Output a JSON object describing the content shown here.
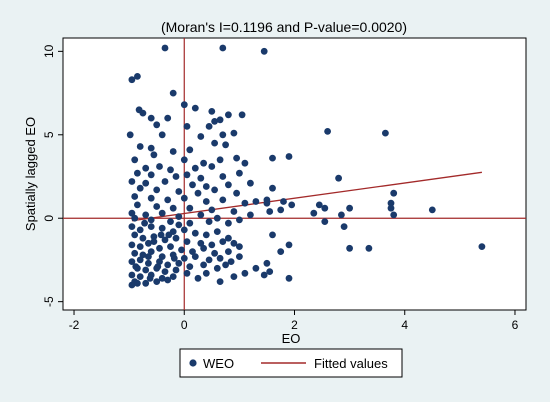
{
  "chart_data": {
    "type": "scatter",
    "title": "(Moran's I=0.1196 and P-value=0.0020)",
    "xlabel": "EO",
    "ylabel": "Spatially lagged EO",
    "xlim": [
      -2.2,
      6.2
    ],
    "ylim": [
      -5.5,
      10.8
    ],
    "xticks": [
      -2,
      0,
      2,
      4,
      6
    ],
    "yticks": [
      -5,
      0,
      5,
      10
    ],
    "grid": false,
    "legend_position": "bottom",
    "reference_lines": {
      "x": 0,
      "y": 0
    },
    "series": [
      {
        "name": "WEO",
        "kind": "scatter",
        "color": "#1a3a6b",
        "points": [
          [
            -0.35,
            10.2
          ],
          [
            0.7,
            10.2
          ],
          [
            1.45,
            10.0
          ],
          [
            -0.95,
            8.3
          ],
          [
            -0.85,
            8.5
          ],
          [
            -0.2,
            7.5
          ],
          [
            0.0,
            6.8
          ],
          [
            0.2,
            6.6
          ],
          [
            -0.82,
            6.5
          ],
          [
            -0.75,
            6.3
          ],
          [
            0.5,
            6.4
          ],
          [
            0.8,
            6.2
          ],
          [
            1.05,
            6.2
          ],
          [
            -0.6,
            6.0
          ],
          [
            -0.3,
            6.0
          ],
          [
            0.55,
            5.8
          ],
          [
            0.65,
            5.9
          ],
          [
            0.05,
            5.5
          ],
          [
            -0.5,
            5.6
          ],
          [
            0.45,
            5.5
          ],
          [
            0.7,
            5.0
          ],
          [
            0.9,
            5.1
          ],
          [
            -0.98,
            5.0
          ],
          [
            -0.4,
            5.0
          ],
          [
            0.3,
            4.9
          ],
          [
            0.55,
            4.5
          ],
          [
            0.75,
            4.4
          ],
          [
            -0.8,
            4.3
          ],
          [
            -0.6,
            4.2
          ],
          [
            -0.2,
            4.0
          ],
          [
            0.1,
            4.1
          ],
          [
            -0.55,
            3.8
          ],
          [
            -0.9,
            3.5
          ],
          [
            0.0,
            3.5
          ],
          [
            0.35,
            3.3
          ],
          [
            0.65,
            3.5
          ],
          [
            0.95,
            3.6
          ],
          [
            1.1,
            3.3
          ],
          [
            -0.7,
            3.0
          ],
          [
            -0.45,
            3.1
          ],
          [
            -0.25,
            2.9
          ],
          [
            0.2,
            3.0
          ],
          [
            0.5,
            3.1
          ],
          [
            -0.85,
            2.7
          ],
          [
            -0.6,
            2.6
          ],
          [
            -0.15,
            2.5
          ],
          [
            0.05,
            2.6
          ],
          [
            0.3,
            2.4
          ],
          [
            0.7,
            2.5
          ],
          [
            1.0,
            2.7
          ],
          [
            -0.95,
            2.2
          ],
          [
            -0.7,
            2.1
          ],
          [
            -0.35,
            2.2
          ],
          [
            0.15,
            2.0
          ],
          [
            0.4,
            1.9
          ],
          [
            0.8,
            2.0
          ],
          [
            1.2,
            2.1
          ],
          [
            -0.8,
            1.8
          ],
          [
            -0.5,
            1.7
          ],
          [
            -0.1,
            1.6
          ],
          [
            0.25,
            1.5
          ],
          [
            0.55,
            1.7
          ],
          [
            0.95,
            1.5
          ],
          [
            -0.9,
            1.3
          ],
          [
            -0.6,
            1.2
          ],
          [
            -0.3,
            1.1
          ],
          [
            0.0,
            1.2
          ],
          [
            0.4,
            1.0
          ],
          [
            0.7,
            1.1
          ],
          [
            1.1,
            0.9
          ],
          [
            1.3,
            1.0
          ],
          [
            -0.85,
            0.8
          ],
          [
            -0.5,
            0.7
          ],
          [
            -0.2,
            0.6
          ],
          [
            0.1,
            0.6
          ],
          [
            0.5,
            0.5
          ],
          [
            0.9,
            0.4
          ],
          [
            1.5,
            0.9
          ],
          [
            -0.95,
            0.3
          ],
          [
            -0.7,
            0.2
          ],
          [
            -0.4,
            0.3
          ],
          [
            -0.1,
            0.1
          ],
          [
            0.3,
            0.2
          ],
          [
            0.6,
            0.0
          ],
          [
            1.2,
            0.2
          ],
          [
            -0.9,
            0.0
          ],
          [
            -0.6,
            -0.1
          ],
          [
            -0.25,
            -0.2
          ],
          [
            0.1,
            -0.3
          ],
          [
            0.45,
            -0.2
          ],
          [
            0.8,
            -0.3
          ],
          [
            1.0,
            -0.1
          ],
          [
            1.6,
            3.6
          ],
          [
            1.9,
            3.7
          ],
          [
            1.6,
            1.8
          ],
          [
            1.5,
            1.1
          ],
          [
            1.8,
            1.0
          ],
          [
            1.55,
            0.4
          ],
          [
            1.75,
            0.5
          ],
          [
            1.95,
            0.8
          ],
          [
            2.45,
            0.8
          ],
          [
            2.55,
            0.6
          ],
          [
            2.35,
            0.3
          ],
          [
            2.6,
            5.2
          ],
          [
            2.8,
            2.4
          ],
          [
            2.55,
            -0.2
          ],
          [
            2.85,
            0.2
          ],
          [
            2.9,
            -0.5
          ],
          [
            3.0,
            0.6
          ],
          [
            3.65,
            5.1
          ],
          [
            3.8,
            1.5
          ],
          [
            3.75,
            0.9
          ],
          [
            3.75,
            0.6
          ],
          [
            3.8,
            0.2
          ],
          [
            4.5,
            0.5
          ],
          [
            5.4,
            -1.7
          ],
          [
            3.35,
            -1.8
          ],
          [
            3.0,
            -1.8
          ],
          [
            1.9,
            -1.6
          ],
          [
            1.75,
            -2.0
          ],
          [
            1.6,
            -1.0
          ],
          [
            1.5,
            -2.7
          ],
          [
            1.3,
            -3.0
          ],
          [
            1.55,
            -3.2
          ],
          [
            1.9,
            -3.6
          ],
          [
            1.45,
            -3.4
          ],
          [
            1.1,
            -3.3
          ],
          [
            1.0,
            -2.3
          ],
          [
            0.9,
            -1.5
          ],
          [
            0.75,
            -2.8
          ],
          [
            0.6,
            -3.0
          ],
          [
            0.4,
            -3.3
          ],
          [
            0.25,
            -3.6
          ],
          [
            0.9,
            -3.5
          ],
          [
            0.65,
            -3.8
          ],
          [
            -0.95,
            -0.5
          ],
          [
            -0.8,
            -0.7
          ],
          [
            -0.6,
            -0.5
          ],
          [
            -0.4,
            -0.6
          ],
          [
            -0.2,
            -0.8
          ],
          [
            0.0,
            -0.7
          ],
          [
            0.2,
            -0.9
          ],
          [
            0.4,
            -1.0
          ],
          [
            0.6,
            -0.8
          ],
          [
            0.8,
            -1.2
          ],
          [
            -0.9,
            -1.0
          ],
          [
            -0.75,
            -1.2
          ],
          [
            -0.55,
            -1.1
          ],
          [
            -0.35,
            -1.3
          ],
          [
            -0.15,
            -1.2
          ],
          [
            0.05,
            -1.4
          ],
          [
            0.3,
            -1.5
          ],
          [
            0.5,
            -1.6
          ],
          [
            0.7,
            -1.4
          ],
          [
            1.0,
            -1.7
          ],
          [
            -0.95,
            -1.6
          ],
          [
            -0.8,
            -1.7
          ],
          [
            -0.65,
            -1.5
          ],
          [
            -0.45,
            -1.8
          ],
          [
            -0.25,
            -1.7
          ],
          [
            -0.05,
            -1.9
          ],
          [
            0.15,
            -2.0
          ],
          [
            0.35,
            -1.8
          ],
          [
            0.55,
            -2.1
          ],
          [
            0.8,
            -2.0
          ],
          [
            -0.9,
            -2.1
          ],
          [
            -0.75,
            -2.2
          ],
          [
            -0.6,
            -2.0
          ],
          [
            -0.4,
            -2.3
          ],
          [
            -0.2,
            -2.2
          ],
          [
            0.0,
            -2.4
          ],
          [
            0.2,
            -2.3
          ],
          [
            0.45,
            -2.5
          ],
          [
            0.65,
            -2.4
          ],
          [
            0.85,
            -2.6
          ],
          [
            -0.95,
            -2.6
          ],
          [
            -0.8,
            -2.5
          ],
          [
            -0.65,
            -2.7
          ],
          [
            -0.45,
            -2.6
          ],
          [
            -0.3,
            -2.8
          ],
          [
            -0.1,
            -2.7
          ],
          [
            0.1,
            -2.9
          ],
          [
            0.35,
            -2.8
          ],
          [
            -0.85,
            -3.0
          ],
          [
            -0.7,
            -3.1
          ],
          [
            -0.5,
            -3.0
          ],
          [
            -0.35,
            -3.2
          ],
          [
            -0.15,
            -3.1
          ],
          [
            0.05,
            -3.3
          ],
          [
            -0.95,
            -3.4
          ],
          [
            -0.8,
            -3.5
          ],
          [
            -0.6,
            -3.4
          ],
          [
            -0.4,
            -3.6
          ],
          [
            -0.2,
            -3.5
          ],
          [
            -0.9,
            -3.8
          ],
          [
            -0.7,
            -3.9
          ],
          [
            -0.5,
            -3.8
          ],
          [
            -0.3,
            -3.7
          ],
          [
            -0.95,
            -4.0
          ],
          [
            -0.85,
            -3.9
          ],
          [
            -0.65,
            -2.3
          ],
          [
            -0.55,
            -1.4
          ],
          [
            -0.72,
            -0.3
          ],
          [
            -0.88,
            -2.9
          ],
          [
            -0.48,
            -2.9
          ],
          [
            -0.28,
            -1.0
          ],
          [
            -0.1,
            -0.4
          ],
          [
            -0.62,
            -3.6
          ],
          [
            -0.42,
            -1.0
          ],
          [
            -0.18,
            -2.4
          ]
        ]
      },
      {
        "name": "Fitted values",
        "kind": "line",
        "color": "#a32a2a",
        "x": [
          -0.95,
          5.4
        ],
        "y": [
          -0.15,
          2.75
        ]
      }
    ]
  }
}
